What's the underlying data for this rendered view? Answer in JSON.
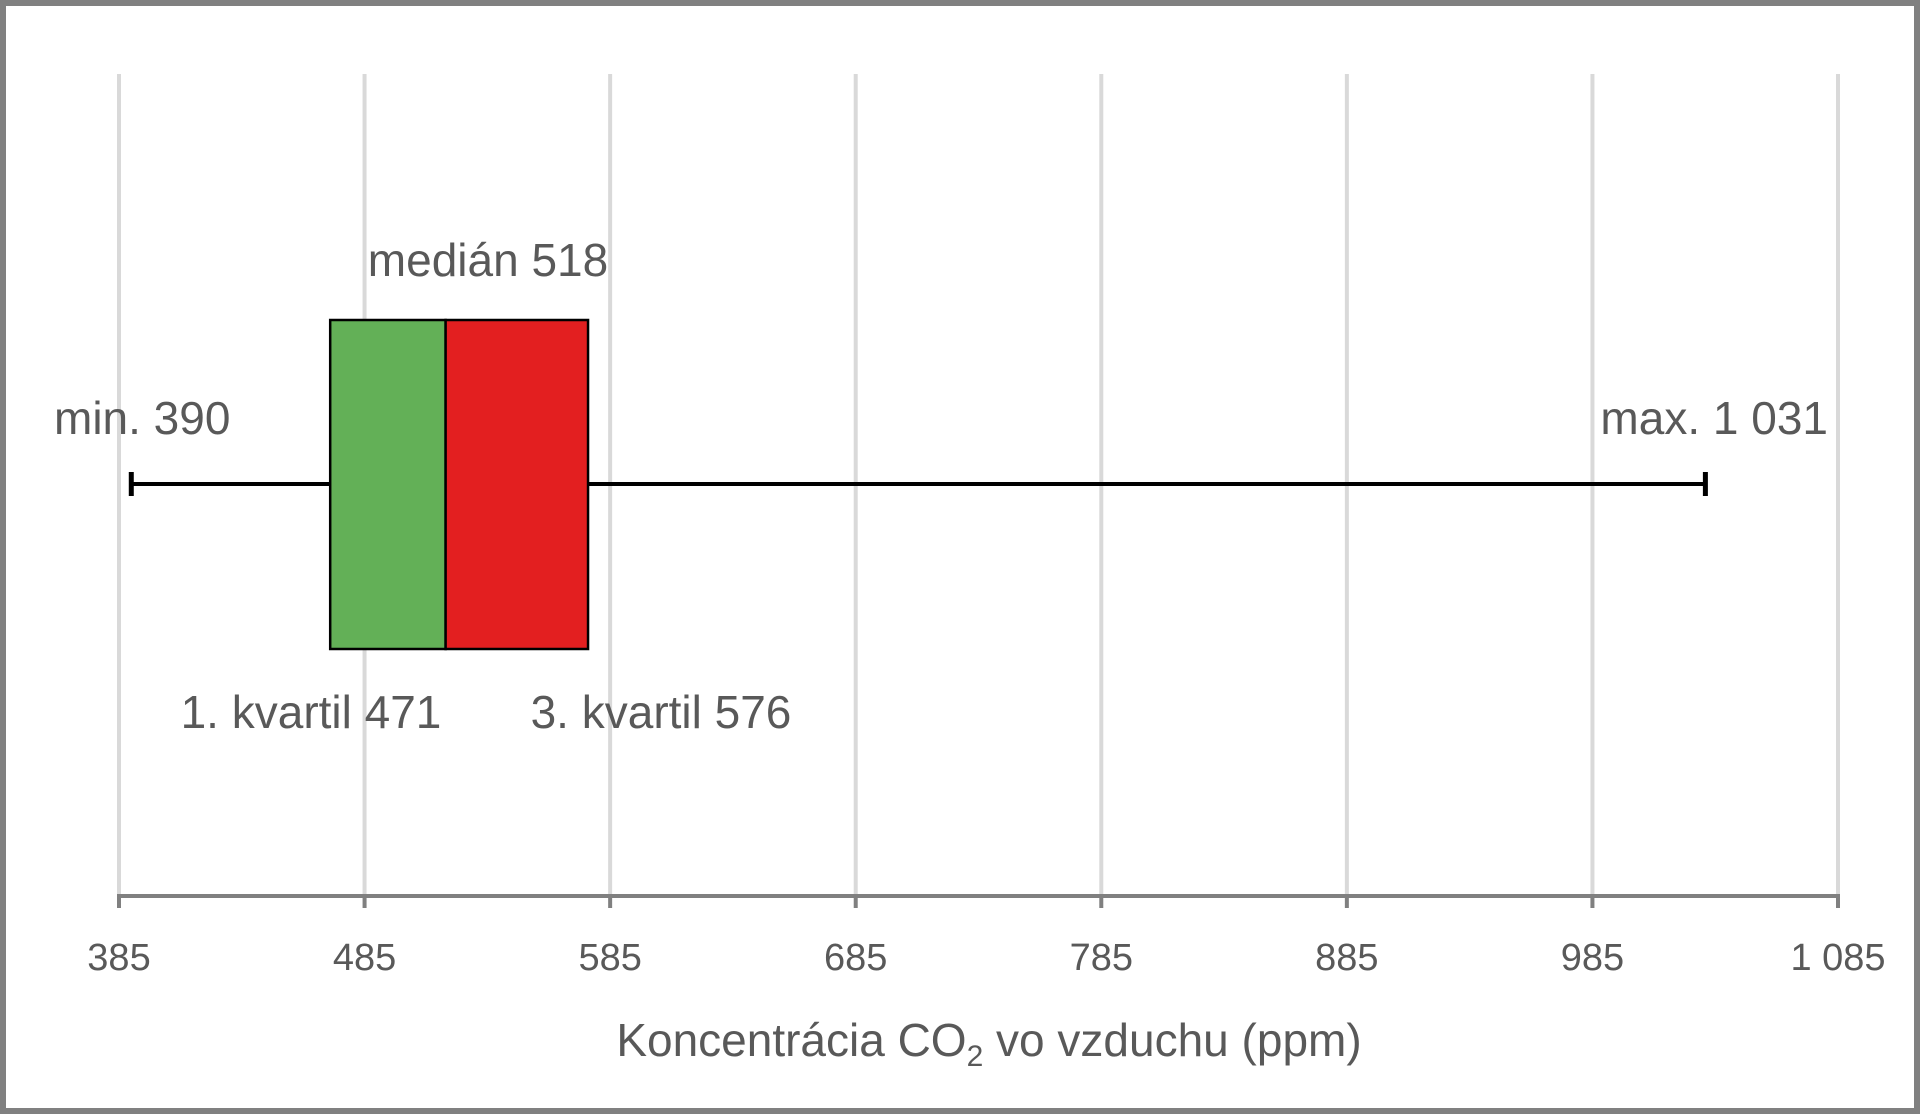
{
  "chart_data": {
    "type": "boxplot",
    "orientation": "horizontal",
    "xlim": [
      385,
      1085
    ],
    "ticks": [
      385,
      485,
      585,
      685,
      785,
      885,
      985,
      1085
    ],
    "tick_labels": [
      "385",
      "485",
      "585",
      "685",
      "785",
      "885",
      "985",
      "1 085"
    ],
    "xlabel": {
      "prefix": "Koncentrácia CO",
      "subscript": "2",
      "suffix": " vo vzduchu (ppm)"
    },
    "grid": true,
    "stats": {
      "min": 390,
      "q1": 471,
      "median": 518,
      "q3": 576,
      "max": 1031
    },
    "annotations": {
      "min": "min. 390",
      "max": "max. 1 031",
      "median": "medián 518",
      "q1": "1. kvartil 471",
      "q3": "3. kvartil 576"
    },
    "colors": {
      "lower_box": "#63b057",
      "upper_box": "#e31f20",
      "grid": "#d9d9d9",
      "axis": "#808080",
      "whisker": "#000000",
      "text": "#595959",
      "frame": "#808080"
    }
  }
}
